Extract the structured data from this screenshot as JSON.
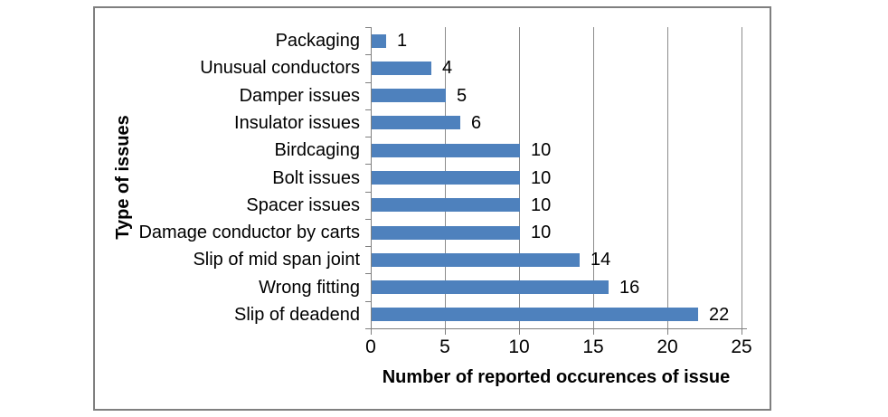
{
  "chart_data": {
    "type": "bar",
    "orientation": "horizontal",
    "categories": [
      "Packaging",
      "Unusual conductors",
      "Damper issues",
      "Insulator issues",
      "Birdcaging",
      "Bolt issues",
      "Spacer issues",
      "Damage conductor by carts",
      "Slip of mid span joint",
      "Wrong fitting",
      "Slip of deadend"
    ],
    "values": [
      1,
      4,
      5,
      6,
      10,
      10,
      10,
      10,
      14,
      16,
      22
    ],
    "data_labels": [
      "1",
      "4",
      "5",
      "6",
      "10",
      "10",
      "10",
      "10",
      "14",
      "16",
      "22"
    ],
    "xlabel": "Number of reported occurences of issue",
    "ylabel": "Type of issues",
    "xlim": [
      0,
      25
    ],
    "xticks": [
      0,
      5,
      10,
      15,
      20,
      25
    ],
    "grid": true,
    "legend": "none"
  },
  "colors": {
    "bar": "#4e81bd",
    "gridline": "#8c8c8c",
    "axis": "#7f7f7f",
    "frame_border": "#7f7f7f",
    "text": "#000000",
    "background": "#ffffff"
  }
}
